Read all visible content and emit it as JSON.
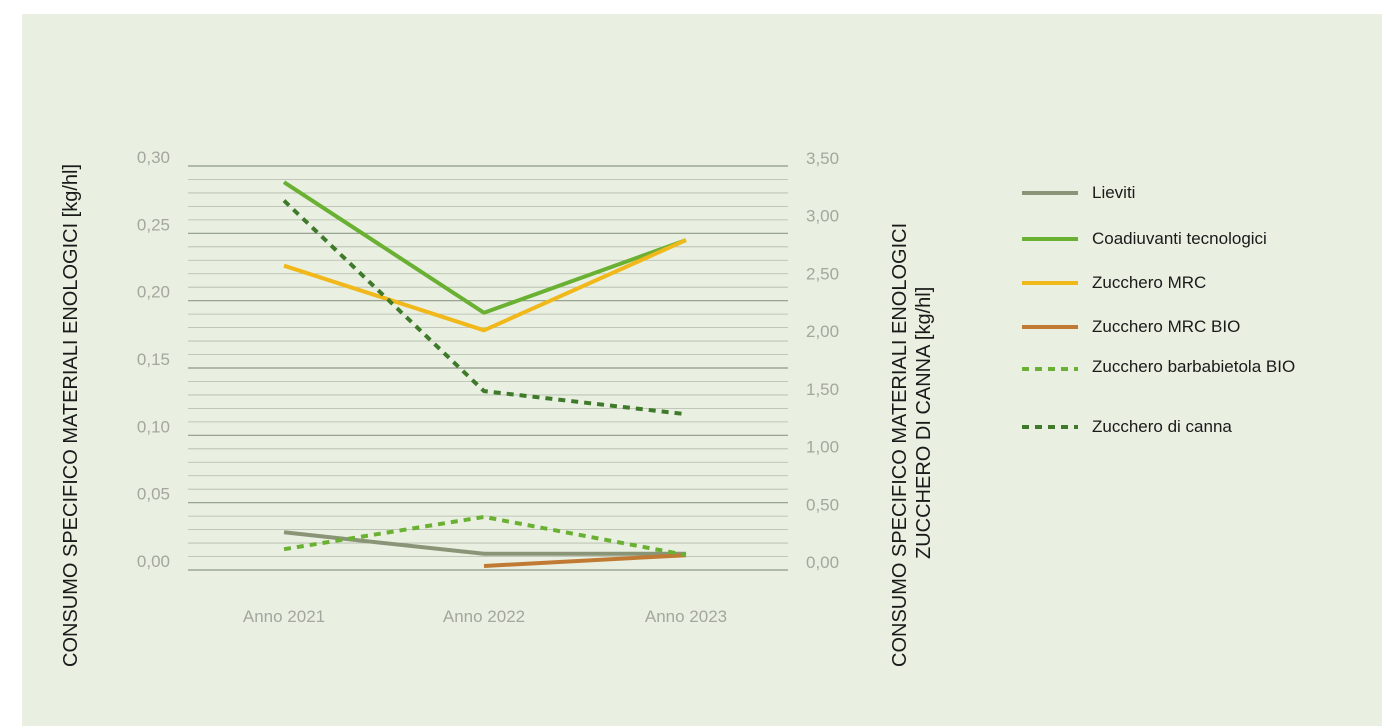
{
  "chart_data": {
    "type": "line",
    "categories": [
      "Anno 2021",
      "Anno 2022",
      "Anno 2023"
    ],
    "ylabel": "CONSUMO SPECIFICO MATERIALI ENOLOGICI [kg/hl]",
    "ylabel_right": [
      "CONSUMO SPECIFICO MATERIALI ENOLOGICI",
      "ZUCCHERO DI CANNA  [kg/hl]"
    ],
    "ylim": [
      0,
      0.3
    ],
    "ylim_right": [
      0,
      3.5
    ],
    "yticks": [
      "0,00",
      "0,05",
      "0,10",
      "0,15",
      "0,20",
      "0,25",
      "0,30"
    ],
    "yticks_right": [
      "0,00",
      "0,50",
      "1,00",
      "1,50",
      "2,00",
      "2,50",
      "3,00",
      "3,50"
    ],
    "grid": true,
    "legend_position": "right",
    "series": [
      {
        "name": "Lieviti",
        "axis": "left",
        "style": "solid",
        "color": "#8a9578",
        "values": [
          0.028,
          0.012,
          0.012
        ]
      },
      {
        "name": "Coadiuvanti tecnologici",
        "axis": "left",
        "style": "solid",
        "color": "#6ab133",
        "values": [
          0.288,
          0.191,
          0.245
        ]
      },
      {
        "name": "Zucchero MRC",
        "axis": "left",
        "style": "solid",
        "color": "#f0b81a",
        "values": [
          0.226,
          0.178,
          0.245
        ]
      },
      {
        "name": "Zucchero MRC BIO",
        "axis": "left",
        "style": "solid",
        "color": "#c07a33",
        "values": [
          null,
          0.003,
          0.011
        ]
      },
      {
        "name": "Zucchero barbabietola BIO",
        "axis": "right",
        "style": "dashed",
        "color": "#6ab133",
        "values": [
          0.18,
          0.46,
          0.13
        ]
      },
      {
        "name": "Zucchero di canna",
        "axis": "right",
        "style": "dashed",
        "color": "#3f7a2b",
        "values": [
          3.2,
          1.55,
          1.35
        ]
      }
    ]
  }
}
